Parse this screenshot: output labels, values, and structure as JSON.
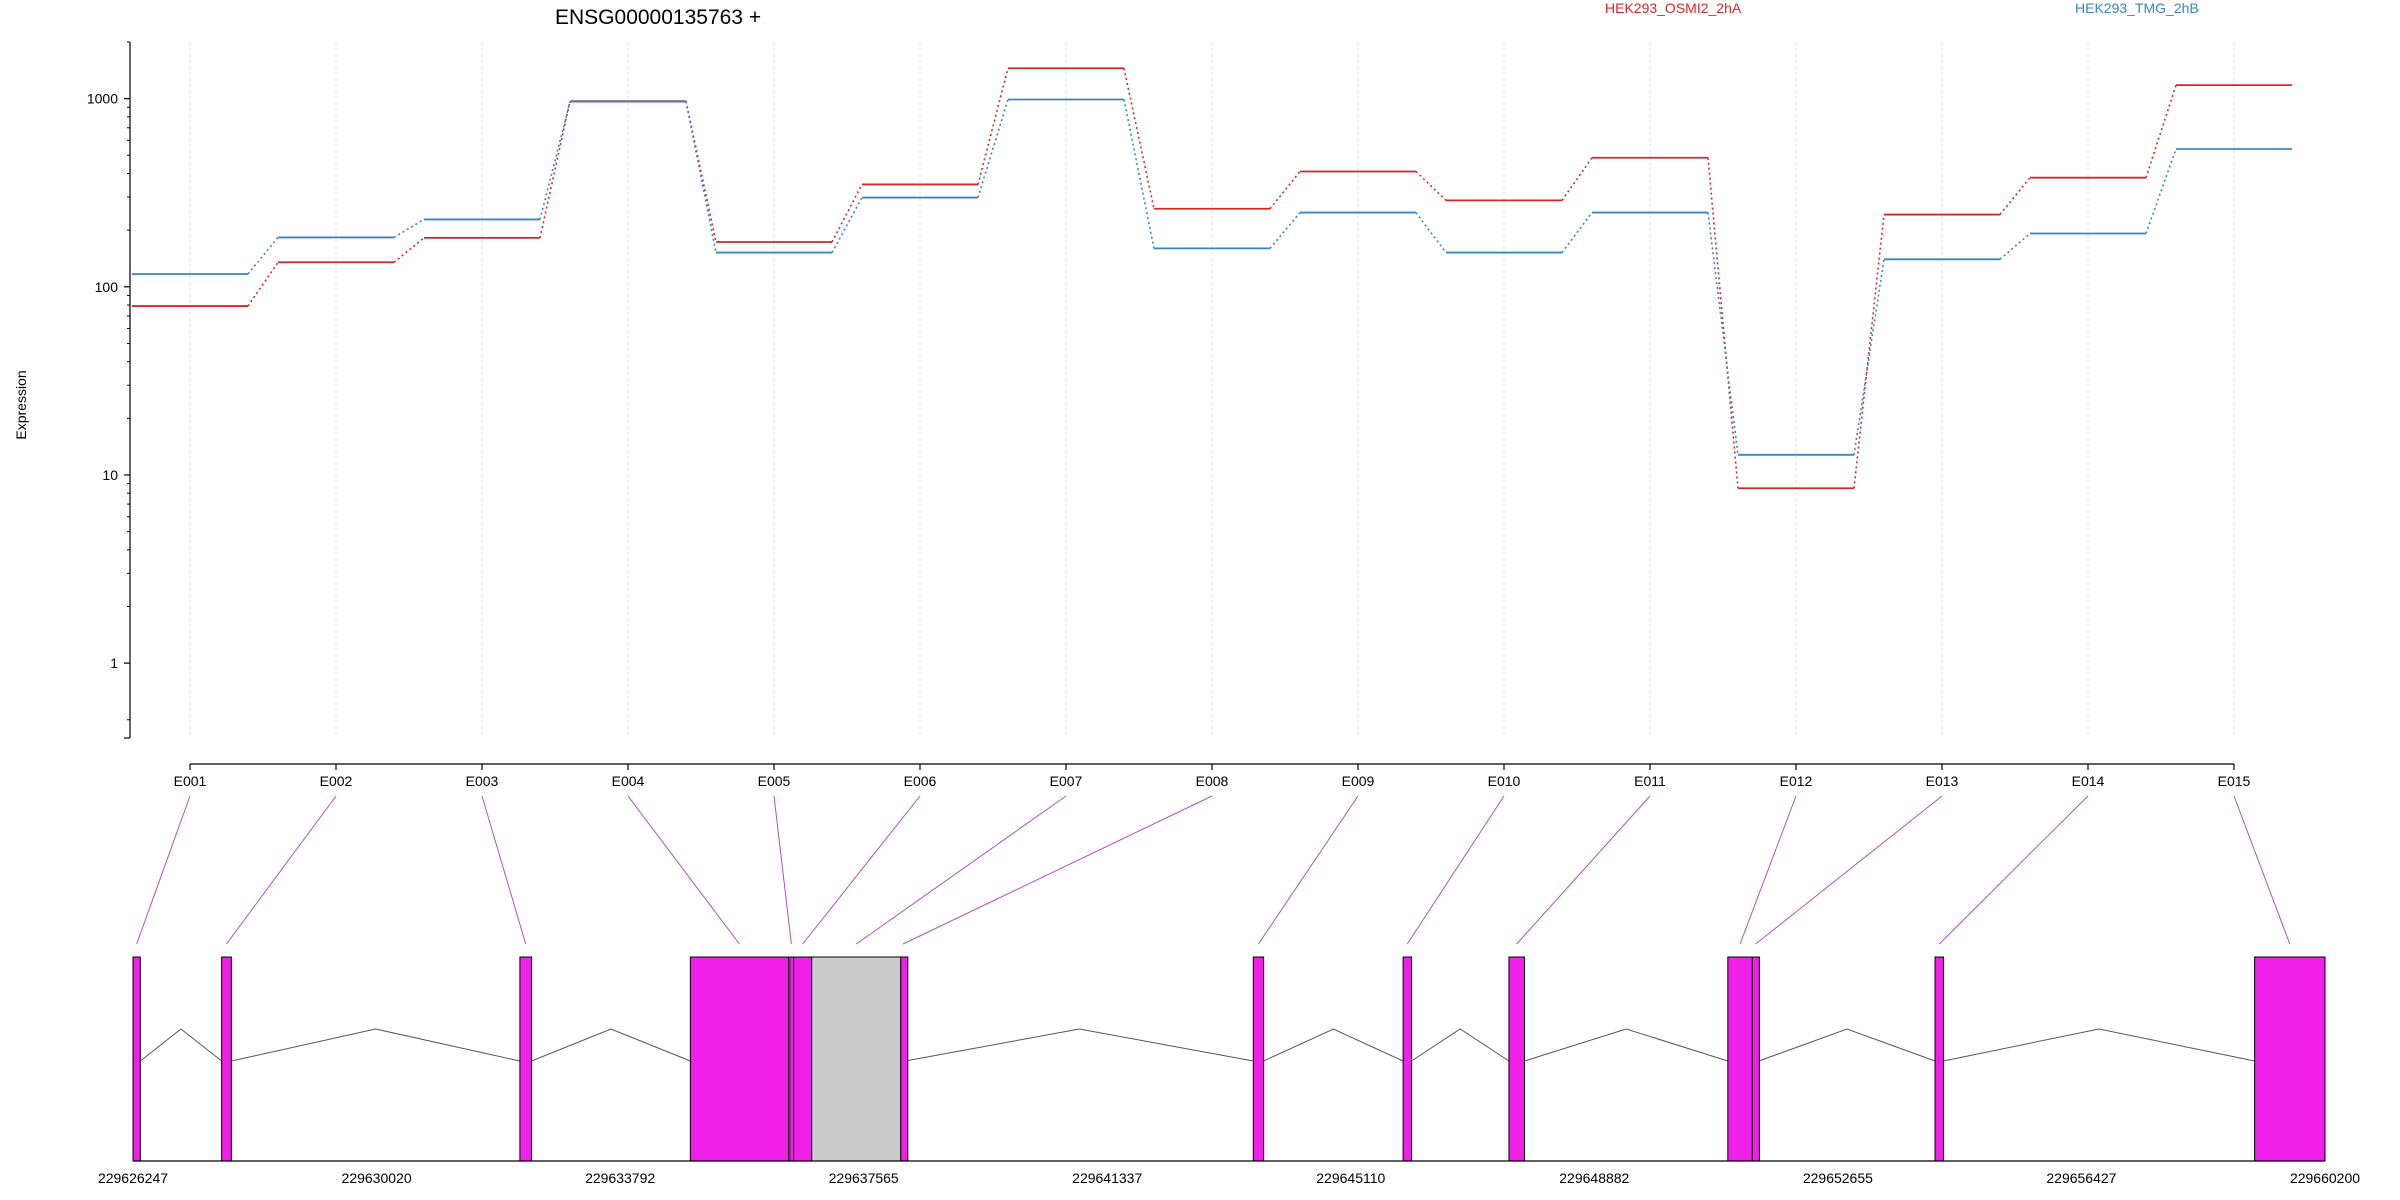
{
  "header": {
    "gene_title": "ENSG00000135763 +"
  },
  "legend": [
    {
      "label": "HEK293_OSMI2_2hA",
      "color": "#d62728"
    },
    {
      "label": "HEK293_TMG_2hB",
      "color": "#3a84c6"
    }
  ],
  "colors": {
    "exon_fill": "#f020e8",
    "collapsed_region_fill": "#cccccc",
    "connector_line": "#b050c0",
    "intron_line": "#555555",
    "grid": "#dddddd"
  },
  "chart_data": {
    "type": "line",
    "ylabel": "Expression",
    "yscale": "log",
    "ylim": [
      0.4,
      2000
    ],
    "yticks": [
      "1",
      "10",
      "100",
      "1000"
    ],
    "categories": [
      "E001",
      "E002",
      "E003",
      "E004",
      "E005",
      "E006",
      "E007",
      "E008",
      "E009",
      "E010",
      "E011",
      "E012",
      "E013",
      "E014",
      "E015"
    ],
    "series": [
      {
        "name": "HEK293_OSMI2_2hA",
        "color": "#d62728",
        "values": [
          79,
          135,
          182,
          970,
          173,
          350,
          1450,
          260,
          410,
          288,
          485,
          8.5,
          242,
          380,
          1180
        ]
      },
      {
        "name": "HEK293_TMG_2hB",
        "color": "#3a84c6",
        "values": [
          117,
          183,
          228,
          965,
          152,
          298,
          990,
          160,
          248,
          152,
          248,
          12.8,
          140,
          192,
          540
        ]
      }
    ],
    "genomic_axis": {
      "ticks": [
        "229626247",
        "229630020",
        "229633792",
        "229637565",
        "229641337",
        "229645110",
        "229648882",
        "229652655",
        "229656427",
        "229660200"
      ],
      "range": [
        229626247,
        229660200
      ]
    },
    "exon_positions": [
      {
        "id": "E001",
        "start": 229626247,
        "end": 229626360
      },
      {
        "id": "E002",
        "start": 229627620,
        "end": 229627770
      },
      {
        "id": "E003",
        "start": 229632240,
        "end": 229632420
      },
      {
        "id": "E004",
        "start": 229634880,
        "end": 229636400
      },
      {
        "id": "E005",
        "start": 229636420,
        "end": 229636470
      },
      {
        "id": "E006",
        "start": 229636480,
        "end": 229636760
      },
      {
        "id": "E007",
        "start": 229636760,
        "end": 229638140
      },
      {
        "id": "E008",
        "start": 229638140,
        "end": 229638210
      },
      {
        "id": "E009",
        "start": 229643600,
        "end": 229643760
      },
      {
        "id": "E010",
        "start": 229645920,
        "end": 229646050
      },
      {
        "id": "E011",
        "start": 229647560,
        "end": 229647800
      },
      {
        "id": "E012",
        "start": 229650950,
        "end": 229651330
      },
      {
        "id": "E013",
        "start": 229651330,
        "end": 229651430
      },
      {
        "id": "E014",
        "start": 229654160,
        "end": 229654290
      },
      {
        "id": "E015",
        "start": 229659110,
        "end": 229660200
      }
    ]
  }
}
